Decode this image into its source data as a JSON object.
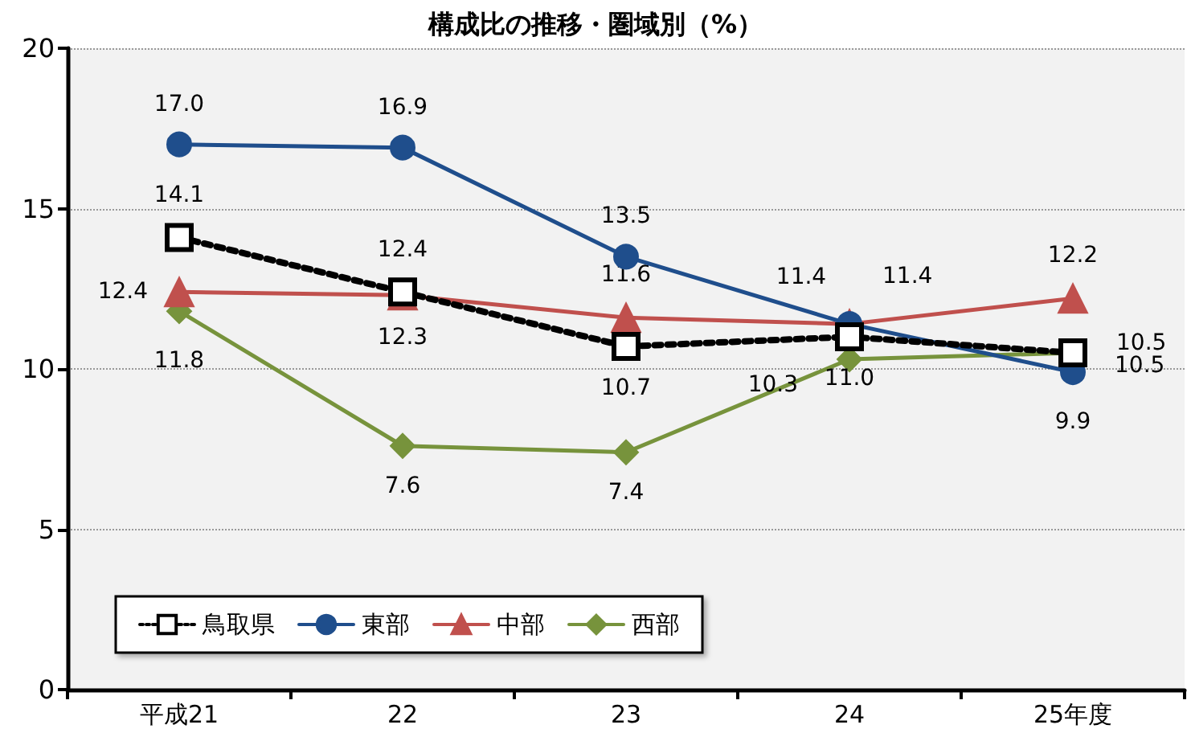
{
  "chart_data": {
    "type": "line",
    "title": "構成比の推移・圏域別（%）",
    "categories": [
      "平成21",
      "22",
      "23",
      "24",
      "25年度"
    ],
    "series": [
      {
        "name": "鳥取県",
        "color": "#000000",
        "marker": "square",
        "line_style": "dotted",
        "values": [
          14.1,
          12.4,
          10.7,
          11.0,
          10.5
        ],
        "value_labels": [
          "14.1",
          "12.4",
          "10.7",
          "11.0",
          "10.5"
        ]
      },
      {
        "name": "東部",
        "color": "#1f4e8c",
        "marker": "circle",
        "line_style": "solid",
        "values": [
          17.0,
          16.9,
          13.5,
          11.4,
          9.9
        ],
        "value_labels": [
          "17.0",
          "16.9",
          "13.5",
          "11.4",
          "9.9"
        ]
      },
      {
        "name": "中部",
        "color": "#c0504d",
        "marker": "triangle",
        "line_style": "solid",
        "values": [
          12.4,
          12.3,
          11.6,
          11.4,
          12.2
        ],
        "value_labels": [
          "12.4",
          "12.3",
          "11.6",
          "11.4",
          "12.2"
        ]
      },
      {
        "name": "西部",
        "color": "#77933c",
        "marker": "diamond",
        "line_style": "solid",
        "values": [
          11.8,
          7.6,
          7.4,
          10.3,
          10.5
        ],
        "value_labels": [
          "11.8",
          "7.6",
          "7.4",
          "10.3",
          "10.5"
        ]
      }
    ],
    "ylim": [
      0,
      20
    ],
    "yticks": [
      0,
      5,
      10,
      15,
      20
    ],
    "grid": "y",
    "legend": "bottom left"
  }
}
